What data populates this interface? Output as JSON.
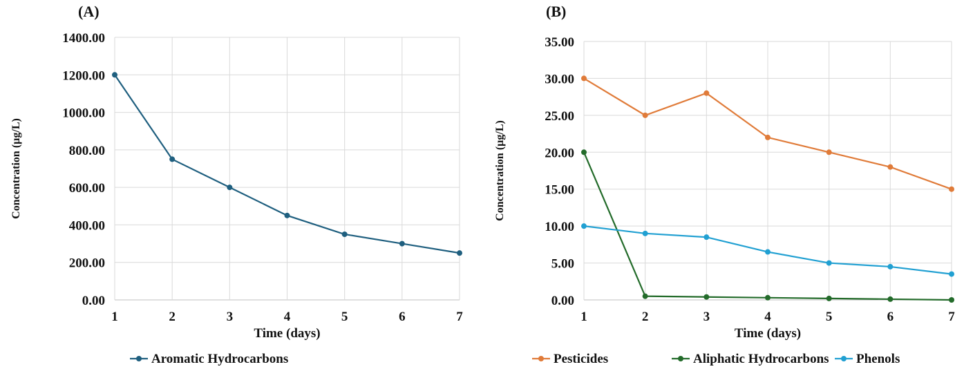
{
  "chart_data": [
    {
      "type": "line",
      "panel_label": "(A)",
      "xlabel": "Time (days)",
      "ylabel": "Concentration (µg/L)",
      "x": [
        1,
        2,
        3,
        4,
        5,
        6,
        7
      ],
      "ylim": [
        0,
        1400
      ],
      "yticks": [
        "0.00",
        "200.00",
        "400.00",
        "600.00",
        "800.00",
        "1000.00",
        "1200.00",
        "1400.00"
      ],
      "grid": true,
      "legend": "bottom",
      "series": [
        {
          "name": "Aromatic Hydrocarbons",
          "color": "#1f5f7f",
          "values": [
            1200,
            750,
            600,
            450,
            350,
            300,
            250
          ]
        }
      ]
    },
    {
      "type": "line",
      "panel_label": "(B)",
      "xlabel": "Time (days)",
      "ylabel": "Concentration (µg/L)",
      "x": [
        1,
        2,
        3,
        4,
        5,
        6,
        7
      ],
      "ylim": [
        0,
        35
      ],
      "yticks": [
        "0.00",
        "5.00",
        "10.00",
        "15.00",
        "20.00",
        "25.00",
        "30.00",
        "35.00"
      ],
      "grid": true,
      "legend": "bottom",
      "series": [
        {
          "name": "Pesticides",
          "color": "#e07b39",
          "values": [
            30,
            25,
            28,
            22,
            20,
            18,
            15
          ]
        },
        {
          "name": "Aliphatic Hydrocarbons",
          "color": "#236b2a",
          "values": [
            20,
            0.5,
            0.4,
            0.3,
            0.2,
            0.1,
            0
          ]
        },
        {
          "name": "Phenols",
          "color": "#21a0d2",
          "values": [
            10,
            9,
            8.5,
            6.5,
            5,
            4.5,
            3.5
          ]
        }
      ]
    }
  ]
}
